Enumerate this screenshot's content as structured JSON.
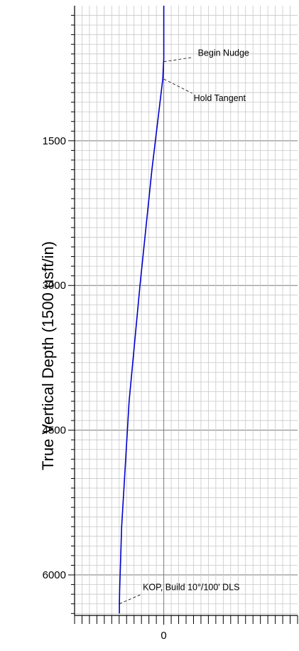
{
  "chart_data": {
    "type": "line",
    "title": "",
    "xlabel": "",
    "ylabel": "True Vertical Depth (1500 usft/in)",
    "y_inverted": true,
    "ylim": [
      100,
      6420
    ],
    "xlim": [
      -900,
      1350
    ],
    "yticks": [
      {
        "value": 1500,
        "label": "1500"
      },
      {
        "value": 3000,
        "label": "3000"
      },
      {
        "value": 4500,
        "label": "4500"
      },
      {
        "value": 6000,
        "label": "6000"
      }
    ],
    "xticks": [
      {
        "value": 0,
        "label": "0"
      }
    ],
    "grid": true,
    "series": [
      {
        "color": "#0000cc",
        "x": [
          0,
          0,
          -5,
          -10,
          -120,
          -240,
          -350,
          -425,
          -445,
          -448,
          -448
        ],
        "y": [
          100,
          650,
          750,
          860,
          1800,
          3000,
          4200,
          5500,
          6150,
          6300,
          6400
        ]
      }
    ],
    "annotations": [
      {
        "text": "Begin Nudge",
        "x": 0,
        "y": 680
      },
      {
        "text": "Hold Tangent",
        "x": 0,
        "y": 860
      },
      {
        "text": "KOP, Build 10°/100' DLS",
        "x": -448,
        "y": 6300
      }
    ]
  }
}
